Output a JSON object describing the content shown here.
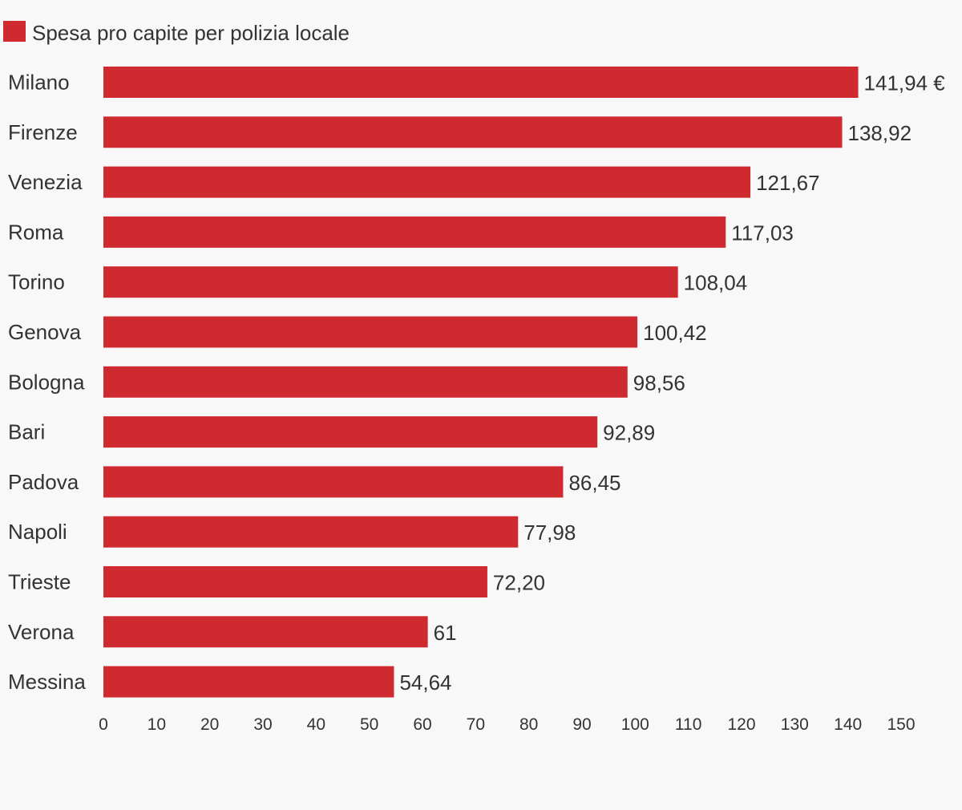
{
  "chart_data": {
    "type": "bar",
    "orientation": "horizontal",
    "legend": {
      "label": "Spesa pro capite per polizia locale",
      "position": "top-left"
    },
    "categories": [
      "Milano",
      "Firenze",
      "Venezia",
      "Roma",
      "Torino",
      "Genova",
      "Bologna",
      "Bari",
      "Padova",
      "Napoli",
      "Trieste",
      "Verona",
      "Messina"
    ],
    "series": [
      {
        "name": "Spesa pro capite per polizia locale",
        "color": "#cf2a30",
        "values": [
          141.94,
          138.92,
          121.67,
          117.03,
          108.04,
          100.42,
          98.56,
          92.89,
          86.45,
          77.98,
          72.2,
          61,
          54.64
        ],
        "labels": [
          "141,94 €",
          "138,92",
          "121,67",
          "117,03",
          "108,04",
          "100,42",
          "98,56",
          "92,89",
          "86,45",
          "77,98",
          "72,20",
          "61",
          "54,64"
        ]
      }
    ],
    "xlim": [
      0,
      150
    ],
    "x_ticks": [
      0,
      10,
      20,
      30,
      40,
      50,
      60,
      70,
      80,
      90,
      100,
      110,
      120,
      130,
      140,
      150
    ],
    "grid": false,
    "background": "#f8f8f8"
  }
}
